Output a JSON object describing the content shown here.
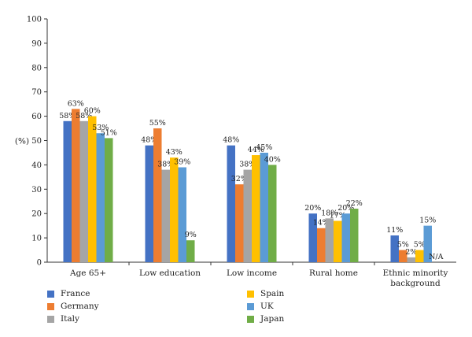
{
  "chart_data": {
    "type": "bar",
    "ylabel": "(%)",
    "ylim": [
      0,
      100
    ],
    "yticks": [
      0,
      10,
      20,
      30,
      40,
      50,
      60,
      70,
      80,
      90,
      100
    ],
    "categories": [
      "Age 65+",
      "Low education",
      "Low income",
      "Rural home",
      "Ethnic minority background"
    ],
    "series": [
      {
        "name": "France",
        "color": "#4472c4",
        "values": [
          58,
          48,
          48,
          20,
          11
        ],
        "labels": [
          "58%",
          "48%",
          "48%",
          "20%",
          "11%"
        ]
      },
      {
        "name": "Germany",
        "color": "#ed7d31",
        "values": [
          63,
          55,
          32,
          14,
          5
        ],
        "labels": [
          "63%",
          "55%",
          "32%",
          "14%",
          "5%"
        ]
      },
      {
        "name": "Italy",
        "color": "#a5a5a5",
        "values": [
          58,
          38,
          38,
          18,
          2
        ],
        "labels": [
          "58%",
          "38%",
          "38%",
          "18%",
          "2%"
        ]
      },
      {
        "name": "Spain",
        "color": "#ffc000",
        "values": [
          60,
          43,
          44,
          17,
          5
        ],
        "labels": [
          "60%",
          "43%",
          "44%",
          "17%",
          "5%"
        ]
      },
      {
        "name": "UK",
        "color": "#5b9bd5",
        "values": [
          53,
          39,
          45,
          20,
          15
        ],
        "labels": [
          "53%",
          "39%",
          "45%",
          "20%",
          "15%"
        ]
      },
      {
        "name": "Japan",
        "color": "#70ad47",
        "values": [
          51,
          9,
          40,
          22,
          null
        ],
        "labels": [
          "51%",
          "9%",
          "40%",
          "22%",
          "N/A"
        ]
      }
    ],
    "legend_position": "bottom-left"
  }
}
